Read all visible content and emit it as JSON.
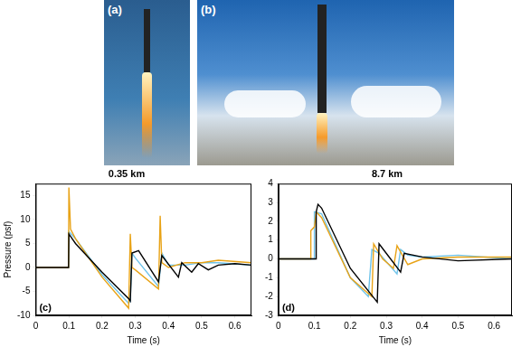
{
  "photo_labels": [
    "(a)",
    "(b)"
  ],
  "chart_data": [
    {
      "type": "line",
      "title": "0.35 km",
      "annotation": "(c)",
      "x_label": "Time (s)",
      "y_label": "Pressure (psf)",
      "xlim": [
        0,
        0.65
      ],
      "xticks": [
        0,
        0.1,
        0.2,
        0.3,
        0.4,
        0.5,
        0.6
      ],
      "ylim": [
        -10,
        17.5
      ],
      "yticks": [
        -10,
        -5,
        0,
        5,
        10,
        15
      ],
      "grid": false,
      "series": [
        {
          "color": "#000000",
          "x": [
            0,
            0.099,
            0.1,
            0.12,
            0.2,
            0.28,
            0.285,
            0.29,
            0.31,
            0.37,
            0.38,
            0.43,
            0.44,
            0.47,
            0.49,
            0.52,
            0.55,
            0.6,
            0.65
          ],
          "values": [
            0,
            0,
            7,
            5,
            -1,
            -6.5,
            -7,
            3,
            3.5,
            -3,
            2.5,
            -2,
            1,
            -1,
            0.8,
            -0.5,
            0.5,
            0.8,
            0.5
          ]
        },
        {
          "color": "#e8a317",
          "x": [
            0,
            0.099,
            0.1,
            0.105,
            0.12,
            0.2,
            0.28,
            0.285,
            0.29,
            0.3,
            0.37,
            0.375,
            0.38,
            0.4,
            0.45,
            0.5,
            0.55,
            0.65
          ],
          "values": [
            0,
            0,
            16.7,
            8,
            6,
            -2,
            -8.5,
            7,
            0,
            -0.5,
            -4.5,
            10.8,
            1,
            0,
            1,
            1,
            1.5,
            1
          ]
        },
        {
          "color": "#6ec3ea",
          "x": [
            0,
            0.099,
            0.1,
            0.12,
            0.2,
            0.28,
            0.285,
            0.29,
            0.3,
            0.37,
            0.38,
            0.4,
            0.45,
            0.5,
            0.55,
            0.65
          ],
          "values": [
            0,
            0,
            7.5,
            6,
            -1.5,
            -7.5,
            -7,
            3,
            2,
            -4,
            3,
            0.5,
            0.5,
            1,
            1,
            0.5
          ]
        }
      ]
    },
    {
      "type": "line",
      "title": "8.7 km",
      "annotation": "(d)",
      "x_label": "Time (s)",
      "xlim": [
        0,
        0.65
      ],
      "xticks": [
        0,
        0.1,
        0.2,
        0.3,
        0.4,
        0.5,
        0.6
      ],
      "ylim": [
        -3,
        4
      ],
      "yticks": [
        -3,
        -2,
        -1,
        0,
        1,
        2,
        3,
        4
      ],
      "grid": false,
      "series": [
        {
          "color": "#000000",
          "x": [
            0,
            0.104,
            0.105,
            0.11,
            0.12,
            0.2,
            0.275,
            0.28,
            0.3,
            0.34,
            0.35,
            0.4,
            0.5,
            0.65
          ],
          "values": [
            0,
            0,
            2.5,
            2.9,
            2.7,
            -0.5,
            -2.3,
            0.8,
            0.3,
            -0.7,
            0.3,
            0.1,
            -0.1,
            0
          ]
        },
        {
          "color": "#e8a317",
          "x": [
            0,
            0.089,
            0.09,
            0.1,
            0.105,
            0.12,
            0.2,
            0.26,
            0.265,
            0.29,
            0.32,
            0.33,
            0.36,
            0.4,
            0.5,
            0.65
          ],
          "values": [
            0,
            0,
            1.5,
            1.7,
            2.5,
            2.2,
            -1,
            -2,
            0.8,
            0,
            -0.5,
            0.7,
            -0.3,
            0,
            0.1,
            0.1
          ]
        },
        {
          "color": "#6ec3ea",
          "x": [
            0,
            0.099,
            0.1,
            0.12,
            0.2,
            0.25,
            0.26,
            0.28,
            0.33,
            0.34,
            0.36,
            0.4,
            0.5,
            0.65
          ],
          "values": [
            0,
            0,
            2.5,
            2.4,
            -1,
            -2,
            0.5,
            0.3,
            -0.8,
            0.5,
            0.2,
            0.1,
            0.2,
            0
          ]
        }
      ]
    }
  ]
}
